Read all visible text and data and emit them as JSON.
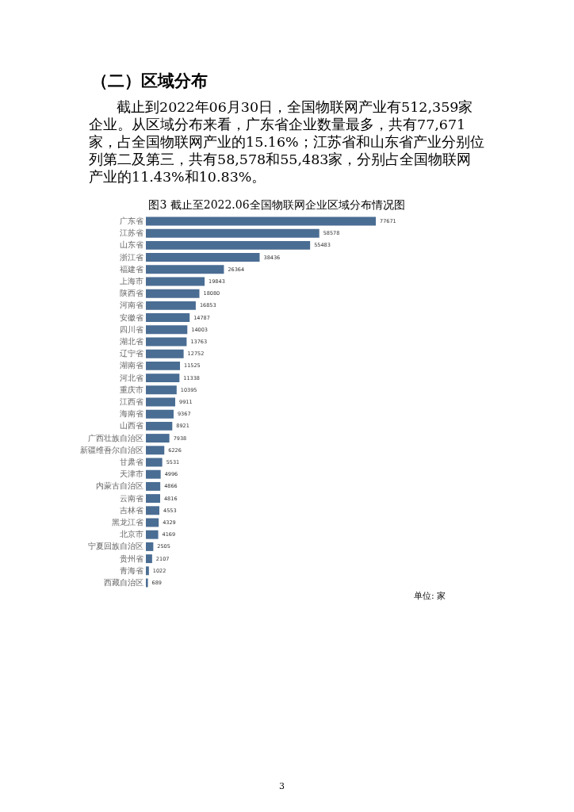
{
  "chart_data": {
    "type": "bar",
    "orientation": "horizontal",
    "title": "图3 截止至2022.06全国物联网企业区域分布情况图",
    "categories": [
      "广东省",
      "江苏省",
      "山东省",
      "浙江省",
      "福建省",
      "上海市",
      "陕西省",
      "河南省",
      "安徽省",
      "四川省",
      "湖北省",
      "辽宁省",
      "湖南省",
      "河北省",
      "重庆市",
      "江西省",
      "海南省",
      "山西省",
      "广西壮族自治区",
      "新疆维吾尔自治区",
      "甘肃省",
      "天津市",
      "内蒙古自治区",
      "云南省",
      "吉林省",
      "黑龙江省",
      "北京市",
      "宁夏回族自治区",
      "贵州省",
      "青海省",
      "西藏自治区"
    ],
    "values": [
      77671,
      58578,
      55483,
      38436,
      26364,
      19843,
      18080,
      16853,
      14787,
      14003,
      13763,
      12752,
      11525,
      11338,
      10395,
      9911,
      9367,
      8921,
      7938,
      6226,
      5531,
      4996,
      4866,
      4816,
      4553,
      4329,
      4169,
      2505,
      2107,
      1022,
      689
    ],
    "color": "#4a6d93",
    "data_labels": true,
    "annotations": [
      "（二）区域分布",
      "截止到2022年06月30日，全国物联网产业有512,359家企业。从区域分布来看，广东省企业数量最多，共有77,671家，占全国物联网产业的15.16%；江苏省和山东省产业分别位列第二及第三，共有58,578和55,483家，分别占全国物联网产业的11.43%和10.83%。",
      "单位: 家",
      "3"
    ]
  }
}
